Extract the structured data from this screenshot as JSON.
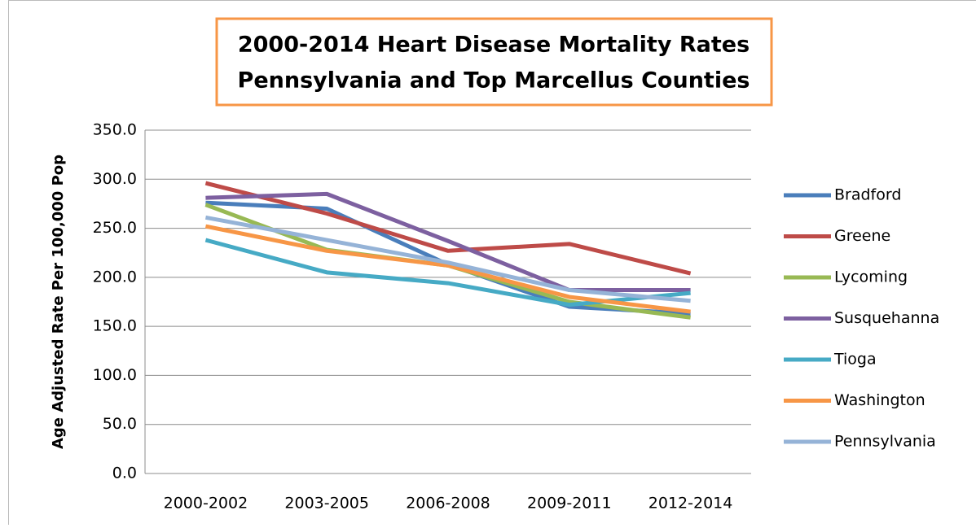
{
  "chart_data": {
    "type": "line",
    "title": [
      "2000-2014 Heart Disease Mortality Rates",
      "Pennsylvania and Top Marcellus Counties"
    ],
    "y_label": "Age Adjusted Rate Per 100,000 Pop",
    "categories": [
      "2000-2002",
      "2003-2005",
      "2006-2008",
      "2009-2011",
      "2012-2014"
    ],
    "series": [
      {
        "name": "Bradford",
        "color": "#4a7ebb",
        "values": [
          276,
          270,
          213,
          170,
          163
        ]
      },
      {
        "name": "Greene",
        "color": "#be4b48",
        "values": [
          296,
          265,
          227,
          234,
          204
        ]
      },
      {
        "name": "Lycoming",
        "color": "#98b954",
        "values": [
          274,
          228,
          212,
          175,
          159
        ]
      },
      {
        "name": "Susquehanna",
        "color": "#7d60a0",
        "values": [
          281,
          285,
          237,
          187,
          187
        ]
      },
      {
        "name": "Tioga",
        "color": "#46aac5",
        "values": [
          238,
          205,
          194,
          172,
          184
        ]
      },
      {
        "name": "Washington",
        "color": "#f79646",
        "values": [
          252,
          227,
          212,
          180,
          165
        ]
      },
      {
        "name": "Pennsylvania",
        "color": "#95b3d7",
        "values": [
          261,
          238,
          215,
          187,
          176
        ]
      }
    ],
    "ylim": [
      0,
      350
    ],
    "yticks": [
      {
        "value": 0,
        "label": "0.0"
      },
      {
        "value": 50,
        "label": "50.0"
      },
      {
        "value": 100,
        "label": "100.0"
      },
      {
        "value": 150,
        "label": "150.0"
      },
      {
        "value": 200,
        "label": "200.0"
      },
      {
        "value": 250,
        "label": "250.0"
      },
      {
        "value": 300,
        "label": "300.0"
      },
      {
        "value": 350,
        "label": "350.0"
      }
    ],
    "grid": true,
    "legend": "right"
  }
}
